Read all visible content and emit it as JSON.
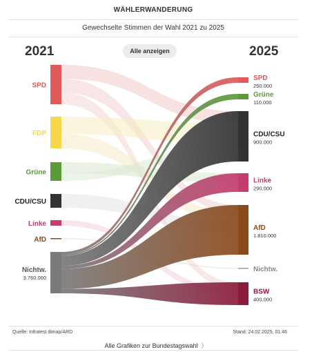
{
  "header": {
    "title": "WÄHLERWANDERUNG",
    "subtitle": "Gewechselte Stimmen der Wahl 2021 zu 2025"
  },
  "controls": {
    "show_all_label": "Alle anzeigen"
  },
  "chart_data": {
    "type": "sankey",
    "left_title": "2021",
    "right_title": "2025",
    "left_nodes": [
      {
        "id": "spd",
        "label": "SPD",
        "color": "#e05a5a"
      },
      {
        "id": "fdp",
        "label": "FDP",
        "color": "#f5d84a"
      },
      {
        "id": "gruene",
        "label": "Grüne",
        "color": "#5b9a3a"
      },
      {
        "id": "cdu",
        "label": "CDU/CSU",
        "color": "#333333"
      },
      {
        "id": "linke",
        "label": "Linke",
        "color": "#c53c6e"
      },
      {
        "id": "afd",
        "label": "AfD",
        "color": "#8b4a1c"
      },
      {
        "id": "nichtw",
        "label": "Nichtw.",
        "value": "3.760.000",
        "color": "#7a7a7a"
      }
    ],
    "right_nodes": [
      {
        "id": "spd",
        "label": "SPD",
        "value": "250.000",
        "color": "#e05a5a"
      },
      {
        "id": "gruene",
        "label": "Grüne",
        "value": "110.000",
        "color": "#5b9a3a"
      },
      {
        "id": "cdu",
        "label": "CDU/CSU",
        "value": "900.000",
        "color": "#333333"
      },
      {
        "id": "linke",
        "label": "Linke",
        "value": "290.000",
        "color": "#c53c6e"
      },
      {
        "id": "afd",
        "label": "AfD",
        "value": "1.810.000",
        "color": "#8b4a1c"
      },
      {
        "id": "nichtw",
        "label": "Nichtw.",
        "value": "",
        "color": "#9a9a9a"
      },
      {
        "id": "bsw",
        "label": "BSW",
        "value": "400.000",
        "color": "#8c1c3c"
      }
    ],
    "highlighted_flows": [
      {
        "from": "nichtw",
        "to": "spd",
        "value": 250000
      },
      {
        "from": "nichtw",
        "to": "gruene",
        "value": 110000
      },
      {
        "from": "nichtw",
        "to": "cdu",
        "value": 900000
      },
      {
        "from": "nichtw",
        "to": "linke",
        "value": 290000
      },
      {
        "from": "nichtw",
        "to": "afd",
        "value": 1810000
      },
      {
        "from": "nichtw",
        "to": "bsw",
        "value": 400000
      }
    ]
  },
  "footer": {
    "source": "Quelle: Infratest dimap/ARD",
    "stand": "Stand: 24.02.2025, 01:46",
    "more_link": "Alle Grafiken zur Bundestagswahl",
    "chevron": "〉"
  }
}
